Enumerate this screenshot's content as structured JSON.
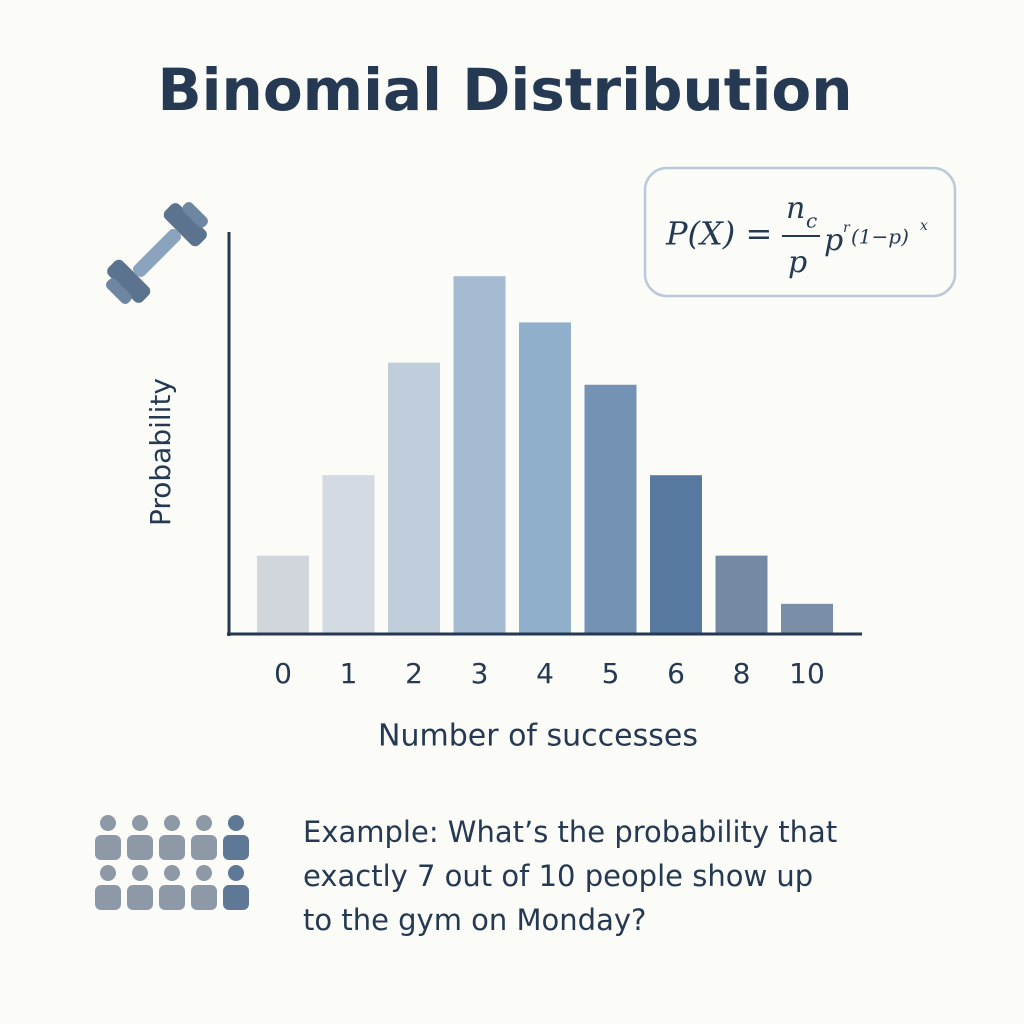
{
  "chart_data": {
    "type": "bar",
    "title": "Binomial Distribution",
    "xlabel": "Number of successes",
    "ylabel": "Probability",
    "categories": [
      "0",
      "1",
      "2",
      "3",
      "4",
      "5",
      "6",
      "8",
      "10"
    ],
    "values": [
      78,
      158,
      270,
      356,
      310,
      248,
      158,
      78,
      30
    ],
    "colors": [
      "#d0d6dc",
      "#d3dae2",
      "#c0cddb",
      "#a5bbd2",
      "#90afcb",
      "#7492b4",
      "#58799f",
      "#7489a3",
      "#7a8ea7"
    ],
    "ylim": [
      0,
      400
    ]
  },
  "formula": {
    "lhs": "P(X) =",
    "numerator": "n",
    "numerator_sub": "c",
    "denominator": "p",
    "base": "p",
    "exp1": "r",
    "paren": "(1−p)",
    "exp2": "x"
  },
  "example": {
    "lines": [
      "Example: What’s the probability that",
      "exactly 7 out of 10 people show up",
      "to the gym on Monday?"
    ]
  }
}
